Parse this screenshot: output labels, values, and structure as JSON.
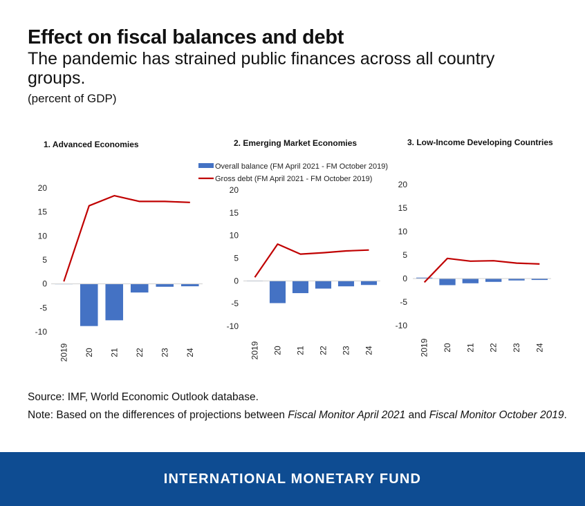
{
  "header": {
    "title": "Effect on fiscal balances and debt",
    "subtitle": "The pandemic has strained public finances across all country groups.",
    "unit": "(percent of GDP)"
  },
  "footnotes": {
    "source": "Source: IMF, World Economic Outlook database.",
    "note_prefix": "Note: Based on the differences of projections between ",
    "note_fm1": "Fiscal Monitor April 2021",
    "note_and": " and ",
    "note_fm2": "Fiscal Monitor October 2019",
    "note_end": "."
  },
  "footer": {
    "brand": "INTERNATIONAL MONETARY FUND"
  },
  "colors": {
    "bar": "#4472c4",
    "line": "#c00000",
    "footer": "#0e4c92"
  },
  "legend": {
    "bar_label": "Overall balance (FM April 2021 - FM October 2019)",
    "line_label": "Gross debt (FM April 2021 - FM October 2019)"
  },
  "chart_data": [
    {
      "type": "bar",
      "title": "1. Advanced Economies",
      "categories": [
        "2019",
        "20",
        "21",
        "22",
        "23",
        "24"
      ],
      "ylim": [
        -10,
        20
      ],
      "yticks": [
        20,
        15,
        10,
        5,
        0,
        -5,
        -10
      ],
      "series": [
        {
          "name": "Overall balance (FM April 2021 - FM October 2019)",
          "kind": "bar",
          "values": [
            0,
            -8.8,
            -7.6,
            -1.8,
            -0.6,
            -0.5
          ]
        },
        {
          "name": "Gross debt (FM April 2021 - FM October 2019)",
          "kind": "line",
          "values": [
            0.5,
            16.3,
            18.4,
            17.2,
            17.2,
            17.0
          ]
        }
      ]
    },
    {
      "type": "bar",
      "title": "2. Emerging Market Economies",
      "categories": [
        "2019",
        "20",
        "21",
        "22",
        "23",
        "24"
      ],
      "ylim": [
        -10,
        20
      ],
      "yticks": [
        20,
        15,
        10,
        5,
        0,
        -5,
        -10
      ],
      "series": [
        {
          "name": "Overall balance (FM April 2021 - FM October 2019)",
          "kind": "bar",
          "values": [
            -0.1,
            -4.9,
            -2.7,
            -1.7,
            -1.2,
            -0.9
          ]
        },
        {
          "name": "Gross debt (FM April 2021 - FM October 2019)",
          "kind": "line",
          "values": [
            0.8,
            8.1,
            5.9,
            6.2,
            6.6,
            6.8
          ]
        }
      ]
    },
    {
      "type": "bar",
      "title": "3. Low-Income Developing Countries",
      "categories": [
        "2019",
        "20",
        "21",
        "22",
        "23",
        "24"
      ],
      "ylim": [
        -10,
        20
      ],
      "yticks": [
        20,
        15,
        10,
        5,
        0,
        -5,
        -10
      ],
      "series": [
        {
          "name": "Overall balance (FM April 2021 - FM October 2019)",
          "kind": "bar",
          "values": [
            0.2,
            -1.4,
            -1.0,
            -0.7,
            -0.4,
            -0.3
          ]
        },
        {
          "name": "Gross debt (FM April 2021 - FM October 2019)",
          "kind": "line",
          "values": [
            -0.8,
            4.3,
            3.7,
            3.8,
            3.3,
            3.1
          ]
        }
      ]
    }
  ]
}
